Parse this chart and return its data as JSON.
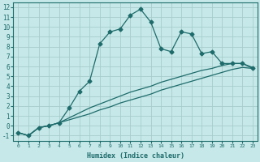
{
  "xlabel": "Humidex (Indice chaleur)",
  "xlim": [
    -0.5,
    23.5
  ],
  "ylim": [
    -1.5,
    12.5
  ],
  "xticks": [
    0,
    1,
    2,
    3,
    4,
    5,
    6,
    7,
    8,
    9,
    10,
    11,
    12,
    13,
    14,
    15,
    16,
    17,
    18,
    19,
    20,
    21,
    22,
    23
  ],
  "yticks": [
    -1,
    0,
    1,
    2,
    3,
    4,
    5,
    6,
    7,
    8,
    9,
    10,
    11,
    12
  ],
  "bg_color": "#c6e8e8",
  "grid_color": "#a8cccc",
  "line_color": "#1e6b6b",
  "line1_x": [
    0,
    1,
    2,
    3,
    4,
    5,
    6,
    7,
    8,
    9,
    10,
    11,
    12,
    13,
    14,
    15,
    16,
    17,
    18,
    19,
    20,
    21,
    22,
    23
  ],
  "line1_y": [
    -0.7,
    -1.0,
    -0.2,
    0.0,
    0.3,
    0.6,
    0.9,
    1.2,
    1.6,
    1.9,
    2.3,
    2.6,
    2.9,
    3.2,
    3.6,
    3.9,
    4.2,
    4.5,
    4.8,
    5.1,
    5.4,
    5.7,
    5.9,
    5.8
  ],
  "line2_x": [
    0,
    1,
    2,
    3,
    4,
    5,
    6,
    7,
    8,
    9,
    10,
    11,
    12,
    13,
    14,
    15,
    16,
    17,
    18,
    19,
    20,
    21,
    22,
    23
  ],
  "line2_y": [
    -0.7,
    -1.0,
    -0.2,
    0.0,
    0.3,
    0.8,
    1.3,
    1.8,
    2.2,
    2.6,
    3.0,
    3.4,
    3.7,
    4.0,
    4.4,
    4.7,
    5.0,
    5.3,
    5.6,
    5.8,
    6.1,
    6.3,
    6.3,
    5.9
  ],
  "line3_x": [
    0,
    1,
    2,
    3,
    4,
    5,
    6,
    7,
    8,
    9,
    10,
    11,
    12,
    13,
    14,
    15,
    16,
    17,
    18,
    19,
    20,
    21,
    22,
    23
  ],
  "line3_y": [
    -0.7,
    -1.0,
    -0.2,
    0.0,
    0.3,
    1.8,
    3.5,
    4.5,
    8.3,
    9.5,
    9.8,
    11.2,
    11.8,
    10.5,
    7.8,
    7.5,
    9.5,
    9.3,
    7.3,
    7.5,
    6.3,
    6.3,
    6.3,
    5.8
  ]
}
